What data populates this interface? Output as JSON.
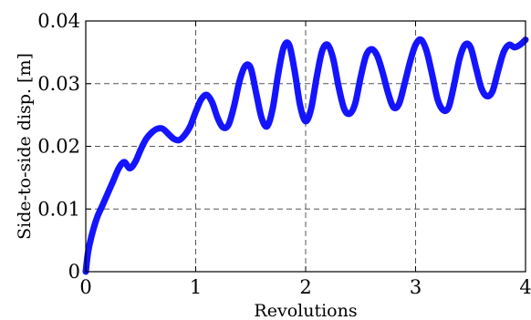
{
  "chart_data": {
    "type": "line",
    "title": "",
    "xlabel": "Revolutions",
    "ylabel": "Side-to-side disp. [m]",
    "xlim": [
      0,
      4
    ],
    "ylim": [
      0,
      0.04
    ],
    "x_ticks": [
      "0",
      "1",
      "2",
      "3",
      "4"
    ],
    "y_ticks": [
      "0",
      "0.01",
      "0.02",
      "0.03",
      "0.04"
    ],
    "grid": true,
    "series": [
      {
        "color": "#1414ff",
        "x": [
          0,
          0.02,
          0.05,
          0.1,
          0.15,
          0.2,
          0.25,
          0.3,
          0.35,
          0.4,
          0.45,
          0.5,
          0.55,
          0.6,
          0.65,
          0.7,
          0.75,
          0.8,
          0.85,
          0.9,
          0.95,
          1.0,
          1.05,
          1.1,
          1.15,
          1.2,
          1.25,
          1.3,
          1.35,
          1.4,
          1.45,
          1.5,
          1.55,
          1.6,
          1.65,
          1.7,
          1.75,
          1.8,
          1.85,
          1.9,
          1.95,
          2.0,
          2.05,
          2.1,
          2.15,
          2.2,
          2.25,
          2.3,
          2.35,
          2.4,
          2.45,
          2.5,
          2.55,
          2.6,
          2.65,
          2.7,
          2.75,
          2.8,
          2.85,
          2.9,
          2.95,
          3.0,
          3.05,
          3.1,
          3.15,
          3.2,
          3.25,
          3.3,
          3.35,
          3.4,
          3.45,
          3.5,
          3.55,
          3.6,
          3.65,
          3.7,
          3.75,
          3.8,
          3.85,
          3.9,
          3.95,
          4.0
        ],
        "y": [
          0.0,
          0.003,
          0.0055,
          0.0085,
          0.0105,
          0.0125,
          0.0145,
          0.0165,
          0.0175,
          0.0165,
          0.0175,
          0.0195,
          0.0212,
          0.0222,
          0.0228,
          0.0228,
          0.022,
          0.0212,
          0.021,
          0.0218,
          0.0232,
          0.0255,
          0.0275,
          0.0282,
          0.027,
          0.0245,
          0.023,
          0.0235,
          0.0265,
          0.0305,
          0.0328,
          0.0325,
          0.0285,
          0.0245,
          0.0232,
          0.026,
          0.0315,
          0.0358,
          0.0362,
          0.032,
          0.0265,
          0.024,
          0.026,
          0.031,
          0.0352,
          0.0362,
          0.034,
          0.0295,
          0.026,
          0.0252,
          0.0268,
          0.031,
          0.0345,
          0.0355,
          0.0345,
          0.0318,
          0.0285,
          0.0262,
          0.0268,
          0.03,
          0.0335,
          0.0362,
          0.037,
          0.0352,
          0.0315,
          0.0275,
          0.0258,
          0.0262,
          0.0298,
          0.034,
          0.0362,
          0.0358,
          0.0325,
          0.0292,
          0.028,
          0.0288,
          0.032,
          0.035,
          0.0362,
          0.0358,
          0.0362,
          0.037
        ]
      }
    ]
  }
}
